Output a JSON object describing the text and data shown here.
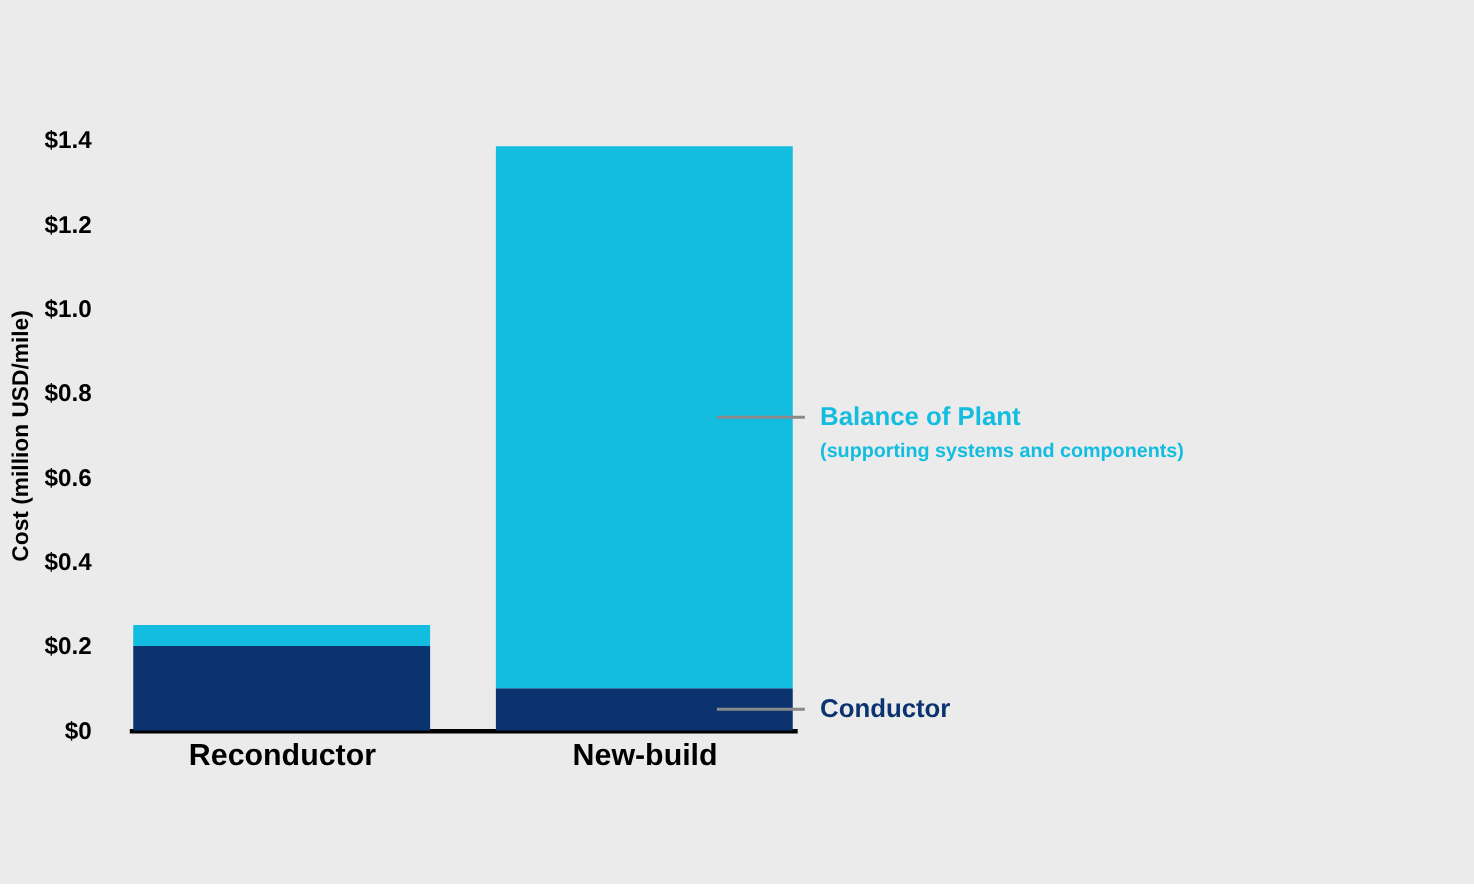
{
  "chart_data": {
    "type": "bar",
    "stacked": true,
    "ylabel": "Cost (million USD/mile)",
    "categories": [
      "Reconductor",
      "New-build"
    ],
    "series": [
      {
        "name": "Conductor",
        "color": "#0a3370",
        "values": [
          0.2,
          0.1
        ]
      },
      {
        "name": "Balance of Plant",
        "color": "#12bde0",
        "values": [
          0.05,
          1.285
        ]
      }
    ],
    "annotations": [
      "(supporting systems and components)"
    ],
    "ylim": [
      0,
      1.4
    ],
    "yticks": [
      {
        "value": 0,
        "label": "$0"
      },
      {
        "value": 0.2,
        "label": "$0.2"
      },
      {
        "value": 0.4,
        "label": "$0.4"
      },
      {
        "value": 0.6,
        "label": "$0.6"
      },
      {
        "value": 0.8,
        "label": "$0.8"
      },
      {
        "value": 1.0,
        "label": "$1.0"
      },
      {
        "value": 1.2,
        "label": "$1.2"
      },
      {
        "value": 1.4,
        "label": "$1.4"
      }
    ],
    "grid": false
  }
}
